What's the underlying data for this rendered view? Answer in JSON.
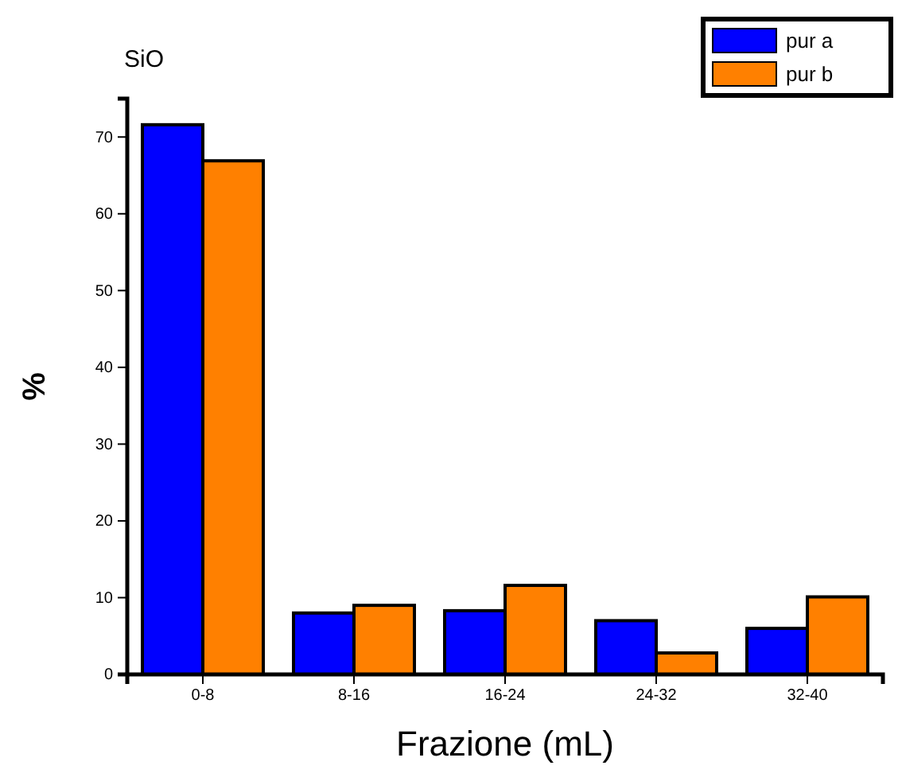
{
  "chart_data": {
    "type": "bar",
    "title": "SiO",
    "xlabel": "Frazione (mL)",
    "ylabel": "%",
    "categories": [
      "0-8",
      "8-16",
      "16-24",
      "24-32",
      "32-40"
    ],
    "series": [
      {
        "name": "pur a",
        "color": "#0000ff",
        "values": [
          71.6,
          8.0,
          8.3,
          7.0,
          6.0
        ]
      },
      {
        "name": "pur b",
        "color": "#ff8000",
        "values": [
          66.9,
          9.0,
          11.6,
          2.8,
          10.1
        ]
      }
    ],
    "ylim": [
      0,
      75
    ],
    "yticks": [
      0,
      10,
      20,
      30,
      40,
      50,
      60,
      70
    ],
    "grid": false,
    "legend": "top right"
  }
}
